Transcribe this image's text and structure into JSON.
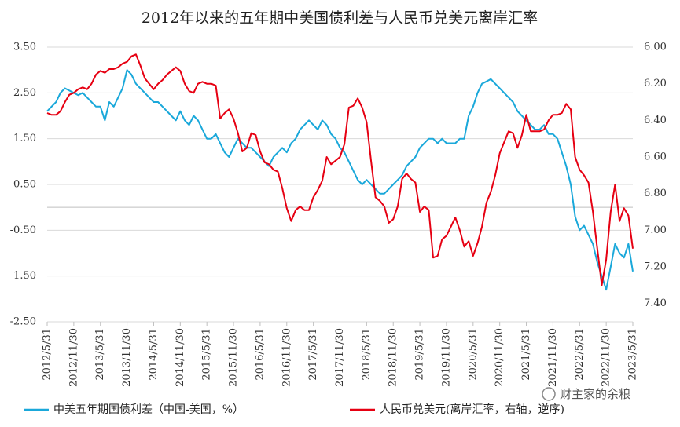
{
  "chart_data": {
    "type": "line",
    "title": "2012年以来的五年期中美国债利差与人民币兑美元离岸汇率",
    "watermark": "财主家的余粮",
    "x": [
      "2012/5/31",
      "2012/6/30",
      "2012/7/31",
      "2012/8/31",
      "2012/9/30",
      "2012/10/31",
      "2012/11/30",
      "2012/12/31",
      "2013/1/31",
      "2013/2/28",
      "2013/3/31",
      "2013/4/30",
      "2013/5/31",
      "2013/6/30",
      "2013/7/31",
      "2013/8/31",
      "2013/9/30",
      "2013/10/31",
      "2013/11/30",
      "2013/12/31",
      "2014/1/31",
      "2014/2/28",
      "2014/3/31",
      "2014/4/30",
      "2014/5/31",
      "2014/6/30",
      "2014/7/31",
      "2014/8/31",
      "2014/9/30",
      "2014/10/31",
      "2014/11/30",
      "2014/12/31",
      "2015/1/31",
      "2015/2/28",
      "2015/3/31",
      "2015/4/30",
      "2015/5/31",
      "2015/6/30",
      "2015/7/31",
      "2015/8/31",
      "2015/9/30",
      "2015/10/31",
      "2015/11/30",
      "2015/12/31",
      "2016/1/31",
      "2016/2/29",
      "2016/3/31",
      "2016/4/30",
      "2016/5/31",
      "2016/6/30",
      "2016/7/31",
      "2016/8/31",
      "2016/9/30",
      "2016/10/31",
      "2016/11/30",
      "2016/12/31",
      "2017/1/31",
      "2017/2/28",
      "2017/3/31",
      "2017/4/30",
      "2017/5/31",
      "2017/6/30",
      "2017/7/31",
      "2017/8/31",
      "2017/9/30",
      "2017/10/31",
      "2017/11/30",
      "2017/12/31",
      "2018/1/31",
      "2018/2/28",
      "2018/3/31",
      "2018/4/30",
      "2018/5/31",
      "2018/6/30",
      "2018/7/31",
      "2018/8/31",
      "2018/9/30",
      "2018/10/31",
      "2018/11/30",
      "2018/12/31",
      "2019/1/31",
      "2019/2/28",
      "2019/3/31",
      "2019/4/30",
      "2019/5/31",
      "2019/6/30",
      "2019/7/31",
      "2019/8/31",
      "2019/9/30",
      "2019/10/31",
      "2019/11/30",
      "2019/12/31",
      "2020/1/31",
      "2020/2/29",
      "2020/3/31",
      "2020/4/30",
      "2020/5/31",
      "2020/6/30",
      "2020/7/31",
      "2020/8/31",
      "2020/9/30",
      "2020/10/31",
      "2020/11/30",
      "2020/12/31",
      "2021/1/31",
      "2021/2/28",
      "2021/3/31",
      "2021/4/30",
      "2021/5/31",
      "2021/6/30",
      "2021/7/31",
      "2021/8/31",
      "2021/9/30",
      "2021/10/31",
      "2021/11/30",
      "2021/12/31",
      "2022/1/31",
      "2022/2/28",
      "2022/3/31",
      "2022/4/30",
      "2022/5/31",
      "2022/6/30",
      "2022/7/31",
      "2022/8/31",
      "2022/9/30",
      "2022/10/31",
      "2022/11/30",
      "2022/12/31",
      "2023/1/31",
      "2023/2/28",
      "2023/3/31",
      "2023/4/30",
      "2023/5/31"
    ],
    "xticks": [
      "2012/5/31",
      "2012/11/30",
      "2013/5/31",
      "2013/11/30",
      "2014/5/31",
      "2014/11/30",
      "2015/5/31",
      "2015/11/30",
      "2016/5/31",
      "2016/11/30",
      "2017/5/31",
      "2017/11/30",
      "2018/5/31",
      "2018/11/30",
      "2019/5/31",
      "2019/11/30",
      "2020/5/31",
      "2020/11/30",
      "2021/5/31",
      "2021/11/30",
      "2022/5/31",
      "2022/11/30",
      "2023/5/31"
    ],
    "series": [
      {
        "name": "中美五年期国债利差（中国-美国，%）",
        "color": "#1aa8da",
        "values": [
          2.1,
          2.2,
          2.3,
          2.5,
          2.6,
          2.55,
          2.5,
          2.45,
          2.5,
          2.4,
          2.3,
          2.2,
          2.2,
          1.9,
          2.3,
          2.2,
          2.4,
          2.6,
          3.0,
          2.9,
          2.7,
          2.6,
          2.5,
          2.4,
          2.3,
          2.3,
          2.2,
          2.1,
          2.0,
          1.9,
          2.1,
          1.9,
          1.8,
          2.0,
          1.9,
          1.7,
          1.5,
          1.5,
          1.6,
          1.4,
          1.2,
          1.1,
          1.3,
          1.5,
          1.4,
          1.3,
          1.3,
          1.2,
          1.1,
          1.0,
          0.9,
          1.1,
          1.2,
          1.3,
          1.2,
          1.4,
          1.5,
          1.7,
          1.8,
          1.9,
          1.8,
          1.7,
          1.9,
          1.8,
          1.6,
          1.5,
          1.3,
          1.2,
          1.0,
          0.8,
          0.6,
          0.5,
          0.6,
          0.5,
          0.4,
          0.3,
          0.3,
          0.4,
          0.5,
          0.6,
          0.7,
          0.9,
          1.0,
          1.1,
          1.3,
          1.4,
          1.5,
          1.5,
          1.4,
          1.5,
          1.4,
          1.4,
          1.4,
          1.5,
          1.5,
          2.0,
          2.2,
          2.5,
          2.7,
          2.75,
          2.8,
          2.7,
          2.6,
          2.5,
          2.4,
          2.3,
          2.1,
          2.0,
          1.9,
          1.8,
          1.7,
          1.7,
          1.8,
          1.6,
          1.6,
          1.5,
          1.2,
          0.9,
          0.5,
          -0.2,
          -0.5,
          -0.4,
          -0.6,
          -0.8,
          -1.2,
          -1.5,
          -1.8,
          -1.3,
          -0.8,
          -1.0,
          -1.1,
          -0.8,
          -1.4
        ]
      },
      {
        "name": "人民币兑美元(离岸汇率，右轴，逆序)",
        "color": "#e60012",
        "axis": "y2",
        "values": [
          6.36,
          6.37,
          6.37,
          6.35,
          6.3,
          6.26,
          6.25,
          6.23,
          6.22,
          6.23,
          6.2,
          6.15,
          6.13,
          6.14,
          6.12,
          6.12,
          6.11,
          6.09,
          6.08,
          6.05,
          6.04,
          6.1,
          6.17,
          6.2,
          6.23,
          6.2,
          6.18,
          6.15,
          6.13,
          6.11,
          6.13,
          6.2,
          6.24,
          6.25,
          6.2,
          6.19,
          6.2,
          6.2,
          6.21,
          6.39,
          6.36,
          6.34,
          6.39,
          6.47,
          6.57,
          6.55,
          6.47,
          6.48,
          6.57,
          6.63,
          6.64,
          6.67,
          6.68,
          6.77,
          6.88,
          6.95,
          6.89,
          6.87,
          6.89,
          6.89,
          6.82,
          6.78,
          6.73,
          6.6,
          6.64,
          6.62,
          6.6,
          6.53,
          6.33,
          6.32,
          6.28,
          6.33,
          6.41,
          6.62,
          6.82,
          6.84,
          6.87,
          6.96,
          6.94,
          6.87,
          6.72,
          6.69,
          6.72,
          6.74,
          6.9,
          6.87,
          6.89,
          7.15,
          7.14,
          7.05,
          7.03,
          6.98,
          6.93,
          7.0,
          7.09,
          7.06,
          7.14,
          7.07,
          6.98,
          6.85,
          6.79,
          6.7,
          6.58,
          6.52,
          6.46,
          6.47,
          6.55,
          6.48,
          6.37,
          6.46,
          6.46,
          6.46,
          6.45,
          6.4,
          6.37,
          6.37,
          6.36,
          6.31,
          6.34,
          6.6,
          6.67,
          6.7,
          6.74,
          6.9,
          7.1,
          7.3,
          7.16,
          6.9,
          6.75,
          6.95,
          6.88,
          6.92,
          7.1
        ]
      }
    ],
    "ylim": [
      -2.5,
      3.5
    ],
    "yticks": [
      {
        "value": -2.5,
        "label": "-2.50"
      },
      {
        "value": -1.5,
        "label": "-1.50"
      },
      {
        "value": -0.5,
        "label": "-0.50"
      },
      {
        "value": 0.5,
        "label": "0.50"
      },
      {
        "value": 1.5,
        "label": "1.50"
      },
      {
        "value": 2.5,
        "label": "2.50"
      },
      {
        "value": 3.5,
        "label": "3.50"
      }
    ],
    "y2lim": [
      7.5,
      6.0
    ],
    "y2ticks": [
      {
        "value": 7.4,
        "label": "7.40"
      },
      {
        "value": 7.2,
        "label": "7.20"
      },
      {
        "value": 7.0,
        "label": "7.00"
      },
      {
        "value": 6.8,
        "label": "6.80"
      },
      {
        "value": 6.6,
        "label": "6.60"
      },
      {
        "value": 6.4,
        "label": "6.40"
      },
      {
        "value": 6.2,
        "label": "6.20"
      },
      {
        "value": 6.0,
        "label": "6.00"
      }
    ],
    "grid": true
  }
}
